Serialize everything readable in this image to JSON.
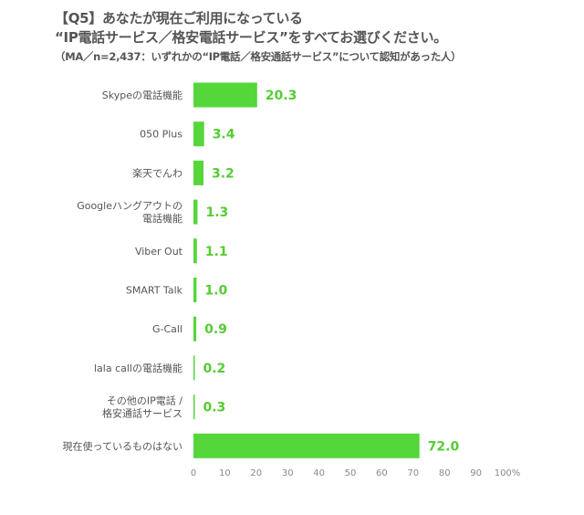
{
  "header": {
    "title_line1": "【Q5】あなたが現在ご利用になっている",
    "title_line2": "“IP電話サービス／格安電話サービス”をすべてお選びください。",
    "subtitle": "（MA／n=2,437：いずれかの“IP電話／格安通話サービス”について認知があった人）"
  },
  "chart_data": {
    "type": "bar",
    "orientation": "horizontal",
    "categories": [
      [
        "Skypeの電話機能"
      ],
      [
        "050 Plus"
      ],
      [
        "楽天でんわ"
      ],
      [
        "Googleハングアウトの",
        "電話機能"
      ],
      [
        "Viber Out"
      ],
      [
        "SMART Talk"
      ],
      [
        "G-Call"
      ],
      [
        "lala callの電話機能"
      ],
      [
        "その他のIP電話 /",
        "格安通話サービス"
      ],
      [
        "現在使っているものはない"
      ]
    ],
    "values": [
      20.3,
      3.4,
      3.2,
      1.3,
      1.1,
      1.0,
      0.9,
      0.2,
      0.3,
      72.0
    ],
    "value_labels": [
      "20.3",
      "3.4",
      "3.2",
      "1.3",
      "1.1",
      "1.0",
      "0.9",
      "0.2",
      "0.3",
      "72.0"
    ],
    "xlim": [
      0,
      100
    ],
    "x_ticks": [
      "0",
      "10",
      "20",
      "30",
      "40",
      "50",
      "60",
      "70",
      "80",
      "90",
      "100%"
    ],
    "grid": false,
    "bar_color": "#55d63b",
    "label_color": "#55cc33"
  }
}
